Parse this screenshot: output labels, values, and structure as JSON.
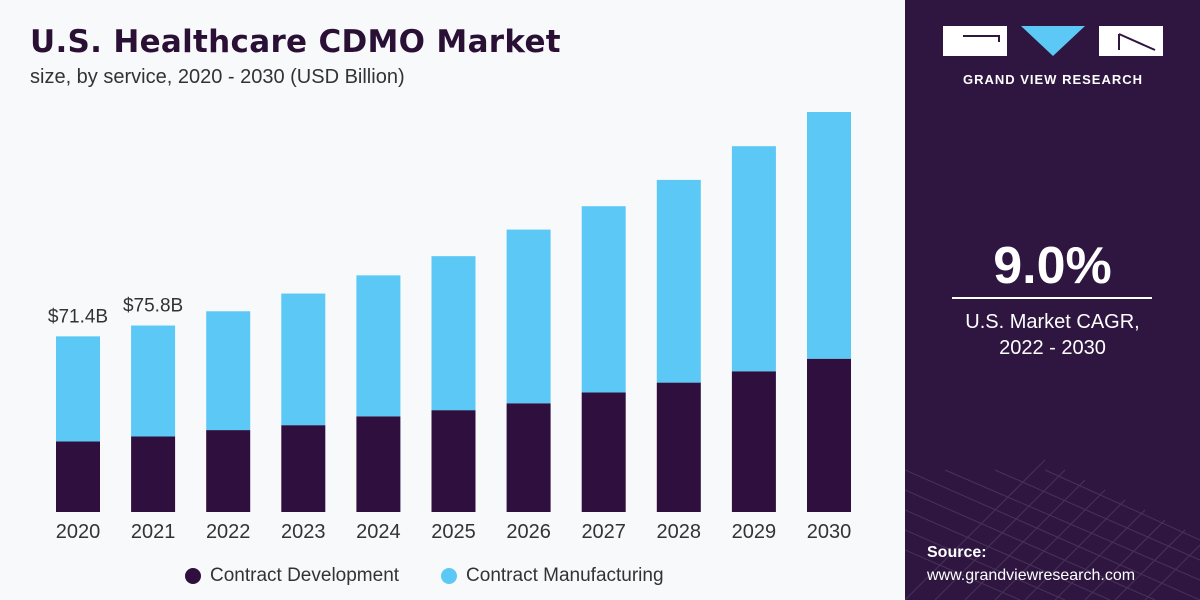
{
  "header": {
    "title": "U.S. Healthcare CDMO Market",
    "subtitle": "size, by service, 2020 - 2030 (USD Billion)"
  },
  "chart_data": {
    "type": "bar",
    "stacked": true,
    "title": "U.S. Healthcare CDMO Market",
    "subtitle": "size, by service, 2020 - 2030 (USD Billion)",
    "categories": [
      "2020",
      "2021",
      "2022",
      "2023",
      "2024",
      "2025",
      "2026",
      "2027",
      "2028",
      "2029",
      "2030"
    ],
    "series": [
      {
        "name": "Contract Development",
        "color": "#2e0f3d",
        "values": [
          28.7,
          30.7,
          33.3,
          35.3,
          38.9,
          41.4,
          44.2,
          48.6,
          52.6,
          57.2,
          62.3
        ]
      },
      {
        "name": "Contract Manufacturing",
        "color": "#5bc8f5",
        "values": [
          42.7,
          45.1,
          48.3,
          53.5,
          57.3,
          62.6,
          70.6,
          75.7,
          82.4,
          91.5,
          100.3
        ]
      }
    ],
    "data_labels": [
      {
        "category": "2020",
        "text": "$71.4B"
      },
      {
        "category": "2021",
        "text": "$75.8B"
      }
    ],
    "ylim": [
      0,
      162.6
    ],
    "grid": false,
    "legend": "bottom"
  },
  "legend": {
    "items": [
      {
        "label": "Contract Development",
        "color": "#2e0f3d"
      },
      {
        "label": "Contract Manufacturing",
        "color": "#5bc8f5"
      }
    ]
  },
  "sidebar": {
    "brand": "GRAND VIEW RESEARCH",
    "cagr_value": "9.0%",
    "cagr_label_line1": "U.S. Market CAGR,",
    "cagr_label_line2": "2022 - 2030",
    "source_heading": "Source:",
    "source_url": "www.grandviewresearch.com"
  },
  "colors": {
    "dark_purple": "#2e0f3d",
    "light_blue": "#5bc8f5",
    "sidebar_bg": "#2f1640"
  }
}
